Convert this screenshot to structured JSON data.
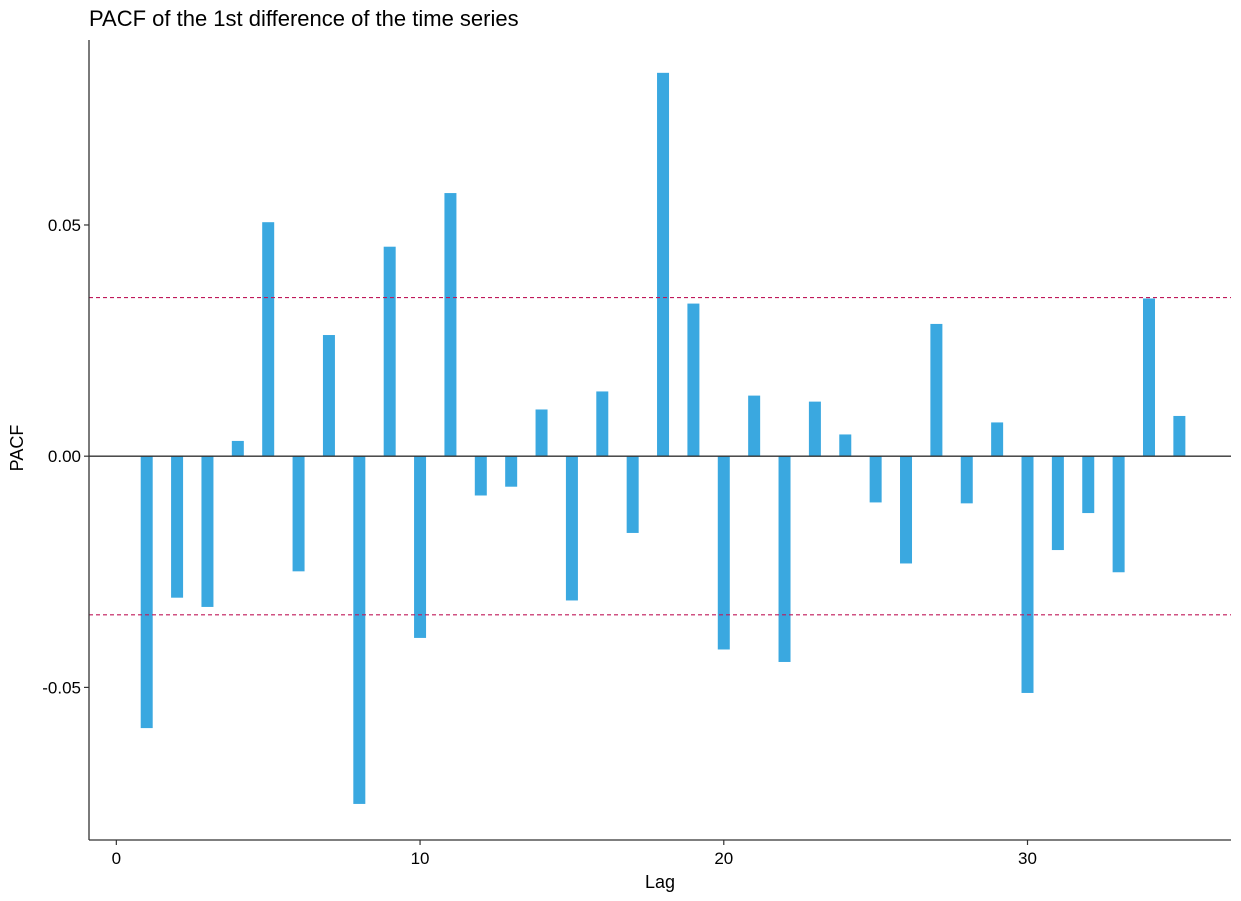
{
  "chart_data": {
    "type": "bar",
    "title": "PACF of the 1st difference of the time series",
    "xlabel": "Lag",
    "ylabel": "PACF",
    "x": [
      1,
      2,
      3,
      4,
      5,
      6,
      7,
      8,
      9,
      10,
      11,
      12,
      13,
      14,
      15,
      16,
      17,
      18,
      19,
      20,
      21,
      22,
      23,
      24,
      25,
      26,
      27,
      28,
      29,
      30,
      31,
      32,
      33,
      34,
      35
    ],
    "values": [
      -0.0588,
      -0.0306,
      -0.0326,
      0.0033,
      0.0506,
      -0.0249,
      0.0262,
      -0.0752,
      0.0453,
      -0.0393,
      0.0569,
      -0.0085,
      -0.0066,
      0.0101,
      -0.0312,
      0.014,
      -0.0166,
      0.0829,
      0.033,
      -0.0418,
      0.0131,
      -0.0445,
      0.0118,
      0.0047,
      -0.01,
      -0.0232,
      0.0286,
      -0.0102,
      0.0073,
      -0.0512,
      -0.0203,
      -0.0123,
      -0.0251,
      0.0341,
      0.0087
    ],
    "confidence_bound": 0.0343,
    "xlim": [
      -0.9,
      36.7
    ],
    "ylim": [
      -0.083,
      0.09
    ],
    "x_ticks": [
      0,
      10,
      20,
      30
    ],
    "x_tick_labels": [
      "0",
      "10",
      "20",
      "30"
    ],
    "y_ticks": [
      -0.05,
      0.0,
      0.05
    ],
    "y_tick_labels": [
      "-0.05",
      "0.00",
      "0.05"
    ],
    "bar_color": "#3aa8e0",
    "bound_color": "#c0195a",
    "zero_line_color": "#333333",
    "grid": false
  }
}
